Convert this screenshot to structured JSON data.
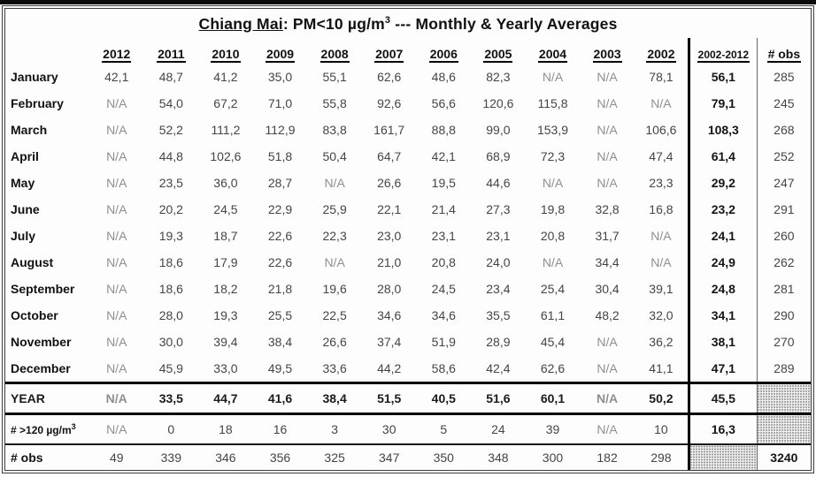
{
  "colors": {
    "value_text": "#454545",
    "na_text": "#8f8f8f",
    "bold_text": "#151515",
    "border": "#000000",
    "hatch_dot": "#8f8f8f"
  },
  "title": {
    "city": "Chiang Mai",
    "pre": ": PM<10 µg/m",
    "sup": "3",
    "post": " --- Monthly & Yearly Averages"
  },
  "chart_data": {
    "type": "table",
    "title": "Chiang Mai: PM<10 µg/m3 --- Monthly & Yearly Averages",
    "columns": [
      "2012",
      "2011",
      "2010",
      "2009",
      "2008",
      "2007",
      "2006",
      "2005",
      "2004",
      "2003",
      "2002",
      "2002-2012",
      "# obs"
    ],
    "rows": [
      {
        "label": "January",
        "style": "month",
        "values": [
          "42,1",
          "48,7",
          "41,2",
          "35,0",
          "55,1",
          "62,6",
          "48,6",
          "82,3",
          "N/A",
          "N/A",
          "78,1",
          "56,1",
          "285"
        ]
      },
      {
        "label": "February",
        "style": "month",
        "values": [
          "N/A",
          "54,0",
          "67,2",
          "71,0",
          "55,8",
          "92,6",
          "56,6",
          "120,6",
          "115,8",
          "N/A",
          "N/A",
          "79,1",
          "245"
        ]
      },
      {
        "label": "March",
        "style": "month",
        "values": [
          "N/A",
          "52,2",
          "111,2",
          "112,9",
          "83,8",
          "161,7",
          "88,8",
          "99,0",
          "153,9",
          "N/A",
          "106,6",
          "108,3",
          "268"
        ]
      },
      {
        "label": "April",
        "style": "month",
        "values": [
          "N/A",
          "44,8",
          "102,6",
          "51,8",
          "50,4",
          "64,7",
          "42,1",
          "68,9",
          "72,3",
          "N/A",
          "47,4",
          "61,4",
          "252"
        ]
      },
      {
        "label": "May",
        "style": "month",
        "values": [
          "N/A",
          "23,5",
          "36,0",
          "28,7",
          "N/A",
          "26,6",
          "19,5",
          "44,6",
          "N/A",
          "N/A",
          "23,3",
          "29,2",
          "247"
        ]
      },
      {
        "label": "June",
        "style": "month",
        "values": [
          "N/A",
          "20,2",
          "24,5",
          "22,9",
          "25,9",
          "22,1",
          "21,4",
          "27,3",
          "19,8",
          "32,8",
          "16,8",
          "23,2",
          "291"
        ]
      },
      {
        "label": "July",
        "style": "month",
        "values": [
          "N/A",
          "19,3",
          "18,7",
          "22,6",
          "22,3",
          "23,0",
          "23,1",
          "23,1",
          "20,8",
          "31,7",
          "N/A",
          "24,1",
          "260"
        ]
      },
      {
        "label": "August",
        "style": "month",
        "values": [
          "N/A",
          "18,6",
          "17,9",
          "22,6",
          "N/A",
          "21,0",
          "20,8",
          "24,0",
          "N/A",
          "34,4",
          "N/A",
          "24,9",
          "262"
        ]
      },
      {
        "label": "September",
        "style": "month",
        "values": [
          "N/A",
          "18,6",
          "18,2",
          "21,8",
          "19,6",
          "28,0",
          "24,5",
          "23,4",
          "25,4",
          "30,4",
          "39,1",
          "24,8",
          "281"
        ]
      },
      {
        "label": "October",
        "style": "month",
        "values": [
          "N/A",
          "28,0",
          "19,3",
          "25,5",
          "22,5",
          "34,6",
          "34,6",
          "35,5",
          "61,1",
          "48,2",
          "32,0",
          "34,1",
          "290"
        ]
      },
      {
        "label": "November",
        "style": "month",
        "values": [
          "N/A",
          "30,0",
          "39,4",
          "38,4",
          "26,6",
          "37,4",
          "51,9",
          "28,9",
          "45,4",
          "N/A",
          "36,2",
          "38,1",
          "270"
        ]
      },
      {
        "label": "December",
        "style": "month",
        "values": [
          "N/A",
          "45,9",
          "33,0",
          "49,5",
          "33,6",
          "44,2",
          "58,6",
          "42,4",
          "62,6",
          "N/A",
          "41,1",
          "47,1",
          "289"
        ]
      },
      {
        "label": "YEAR",
        "style": "year",
        "values": [
          "N/A",
          "33,5",
          "44,7",
          "41,6",
          "38,4",
          "51,5",
          "40,5",
          "51,6",
          "60,1",
          "N/A",
          "50,2",
          "45,5",
          null
        ]
      },
      {
        "label": "# >120 µg/m",
        "label_sup": "3",
        "style": "gt120",
        "values": [
          "N/A",
          "0",
          "18",
          "16",
          "3",
          "30",
          "5",
          "24",
          "39",
          "N/A",
          "10",
          "16,3",
          null
        ]
      },
      {
        "label": "# obs",
        "style": "obs",
        "values": [
          "49",
          "339",
          "346",
          "356",
          "325",
          "347",
          "350",
          "348",
          "300",
          "182",
          "298",
          null,
          "3240"
        ]
      }
    ]
  }
}
